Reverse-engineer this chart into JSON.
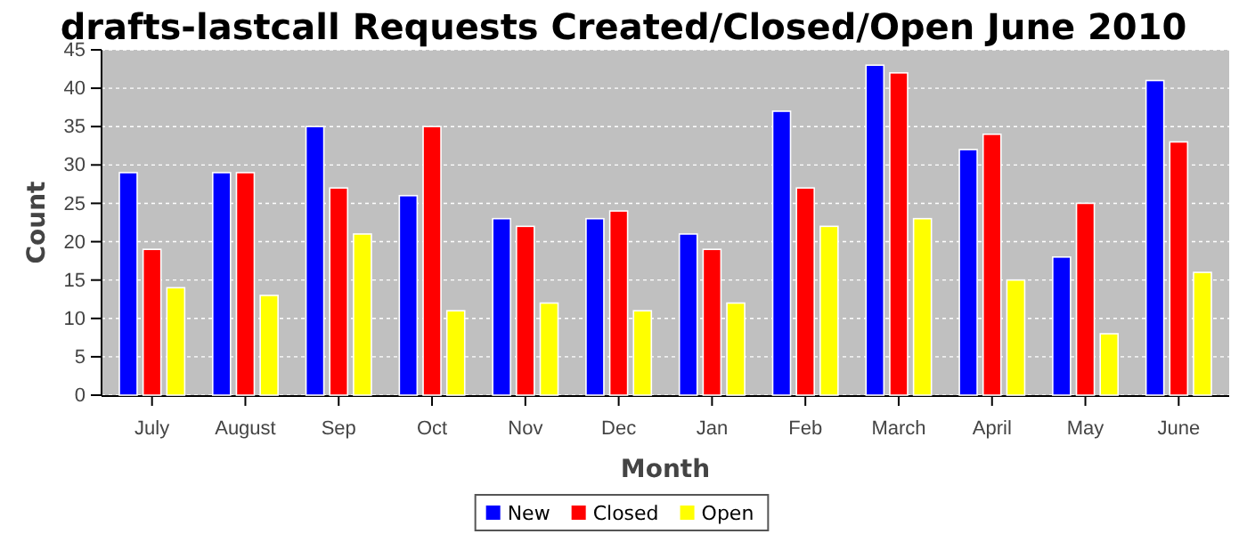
{
  "chart_data": {
    "type": "bar",
    "title": "drafts-lastcall Requests Created/Closed/Open June 2010",
    "xlabel": "Month",
    "ylabel": "Count",
    "categories": [
      "July",
      "August",
      "Sep",
      "Oct",
      "Nov",
      "Dec",
      "Jan",
      "Feb",
      "March",
      "April",
      "May",
      "June"
    ],
    "series": [
      {
        "name": "New",
        "color": "#0000ff",
        "values": [
          29,
          29,
          35,
          26,
          23,
          23,
          21,
          37,
          43,
          32,
          18,
          41
        ]
      },
      {
        "name": "Closed",
        "color": "#ff0000",
        "values": [
          19,
          29,
          27,
          35,
          22,
          24,
          19,
          27,
          42,
          34,
          25,
          33
        ]
      },
      {
        "name": "Open",
        "color": "#ffff00",
        "values": [
          14,
          13,
          21,
          11,
          12,
          11,
          12,
          22,
          23,
          15,
          8,
          16
        ]
      }
    ],
    "ylim": [
      0,
      45
    ],
    "yticks": [
      0,
      5,
      10,
      15,
      20,
      25,
      30,
      35,
      40,
      45
    ],
    "grid": "y",
    "legend": "bottom"
  }
}
